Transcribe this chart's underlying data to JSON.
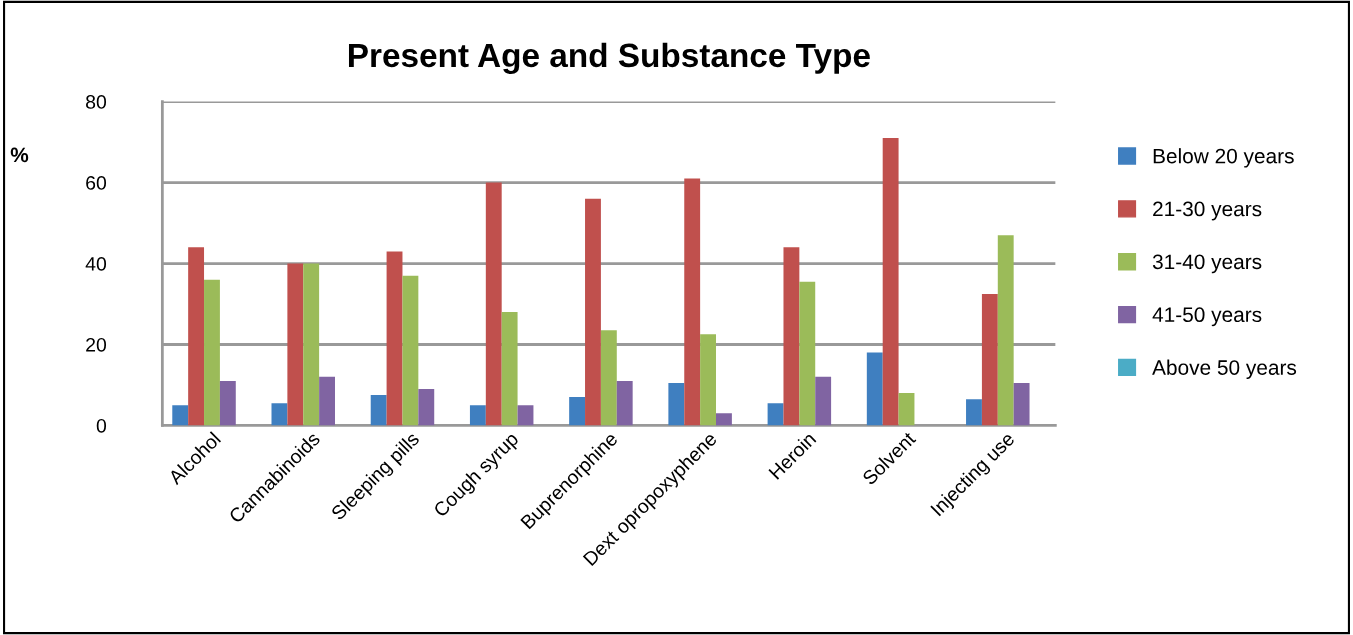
{
  "chart_data": {
    "type": "bar",
    "title": "Present Age and Substance Type",
    "ylabel": "%",
    "categories": [
      "Alcohol",
      "Cannabinoids",
      "Sleeping pills",
      "Cough syrup",
      "Buprenorphine",
      "Dext opropoxyphene",
      "Heroin",
      "Solvent",
      "Injecting use"
    ],
    "series": [
      {
        "name": "Below 20 years",
        "color": "#3f7fc0",
        "values": [
          5,
          5.5,
          7.5,
          5,
          7,
          10.5,
          5.5,
          18,
          6.5
        ]
      },
      {
        "name": "21-30 years",
        "color": "#c0504d",
        "values": [
          44,
          40,
          43,
          60,
          56,
          61,
          44,
          71,
          32.5
        ]
      },
      {
        "name": "31-40 years",
        "color": "#9bbb59",
        "values": [
          36,
          40,
          37,
          28,
          23.5,
          22.5,
          35.5,
          8,
          47
        ]
      },
      {
        "name": "41-50 years",
        "color": "#8064a2",
        "values": [
          11,
          12,
          9,
          5,
          11,
          3,
          12,
          0,
          10.5
        ]
      },
      {
        "name": "Above 50 years",
        "color": "#4bacc6",
        "values": [
          0,
          0,
          0,
          0,
          0,
          0,
          0,
          0,
          0
        ]
      }
    ],
    "ylim": [
      0,
      80
    ],
    "yticks": [
      0,
      20,
      40,
      60,
      80
    ],
    "grid": "y",
    "legend": "right"
  }
}
